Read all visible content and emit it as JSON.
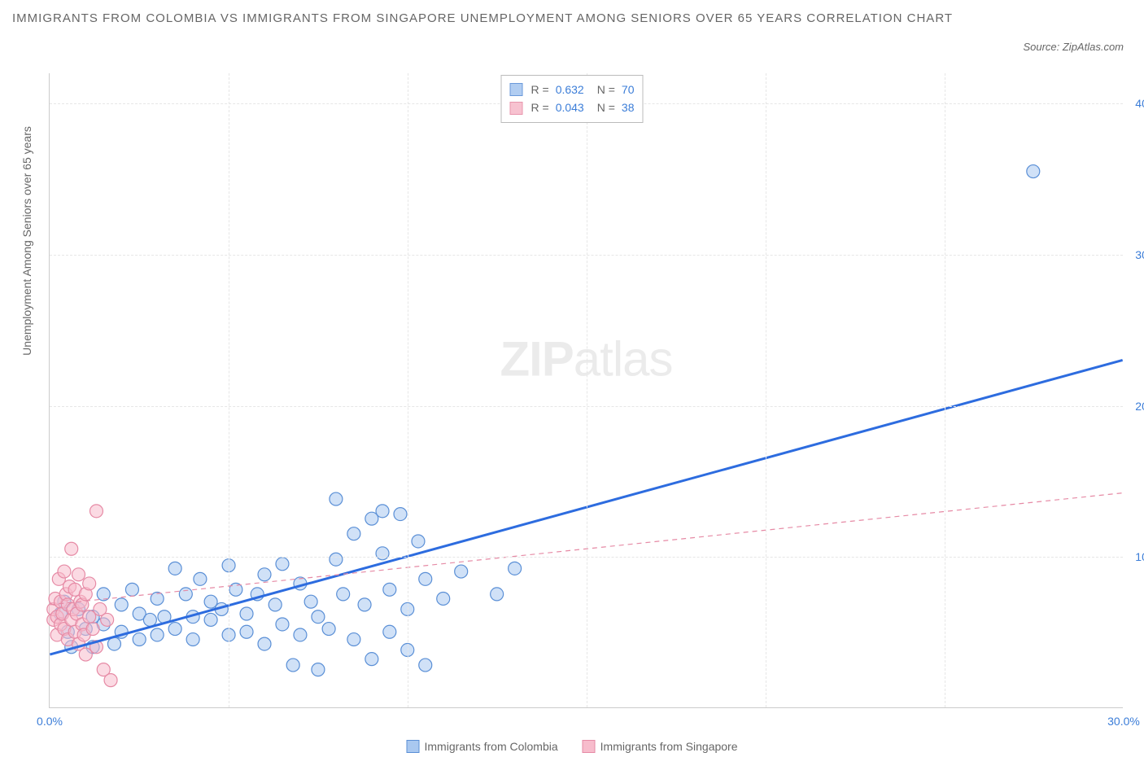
{
  "title": "IMMIGRANTS FROM COLOMBIA VS IMMIGRANTS FROM SINGAPORE UNEMPLOYMENT AMONG SENIORS OVER 65 YEARS CORRELATION CHART",
  "source": "Source: ZipAtlas.com",
  "yaxis_label": "Unemployment Among Seniors over 65 years",
  "watermark_bold": "ZIP",
  "watermark_light": "atlas",
  "chart": {
    "type": "scatter",
    "xlim": [
      0,
      30
    ],
    "ylim": [
      0,
      42
    ],
    "xticks": [
      {
        "v": 0,
        "l": "0.0%"
      },
      {
        "v": 30,
        "l": "30.0%"
      }
    ],
    "yticks": [
      {
        "v": 10,
        "l": "10.0%"
      },
      {
        "v": 20,
        "l": "20.0%"
      },
      {
        "v": 30,
        "l": "30.0%"
      },
      {
        "v": 40,
        "l": "40.0%"
      }
    ],
    "grid_color": "#e6e6e6",
    "background_color": "#ffffff",
    "marker_radius": 8,
    "marker_stroke_width": 1.2,
    "series": [
      {
        "name": "Immigrants from Colombia",
        "fill": "#a9c8f0",
        "stroke": "#5a8fd6",
        "fill_opacity": 0.55,
        "R": "0.632",
        "N": "70",
        "regression": {
          "x1": 0,
          "y1": 3.5,
          "x2": 30,
          "y2": 23,
          "color": "#2d6cdf",
          "width": 3,
          "dash": ""
        },
        "points": [
          [
            0.3,
            6.2
          ],
          [
            0.4,
            7.0
          ],
          [
            0.5,
            5.0
          ],
          [
            0.6,
            4.0
          ],
          [
            0.8,
            6.5
          ],
          [
            1.0,
            5.2
          ],
          [
            1.2,
            4.0
          ],
          [
            1.2,
            6.0
          ],
          [
            1.5,
            7.5
          ],
          [
            1.5,
            5.5
          ],
          [
            1.8,
            4.2
          ],
          [
            2.0,
            6.8
          ],
          [
            2.0,
            5.0
          ],
          [
            2.3,
            7.8
          ],
          [
            2.5,
            4.5
          ],
          [
            2.5,
            6.2
          ],
          [
            2.8,
            5.8
          ],
          [
            3.0,
            7.2
          ],
          [
            3.0,
            4.8
          ],
          [
            3.2,
            6.0
          ],
          [
            3.5,
            9.2
          ],
          [
            3.5,
            5.2
          ],
          [
            3.8,
            7.5
          ],
          [
            4.0,
            6.0
          ],
          [
            4.0,
            4.5
          ],
          [
            4.2,
            8.5
          ],
          [
            4.5,
            5.8
          ],
          [
            4.5,
            7.0
          ],
          [
            4.8,
            6.5
          ],
          [
            5.0,
            9.4
          ],
          [
            5.0,
            4.8
          ],
          [
            5.2,
            7.8
          ],
          [
            5.5,
            6.2
          ],
          [
            5.5,
            5.0
          ],
          [
            5.8,
            7.5
          ],
          [
            6.0,
            8.8
          ],
          [
            6.0,
            4.2
          ],
          [
            6.3,
            6.8
          ],
          [
            6.5,
            9.5
          ],
          [
            6.5,
            5.5
          ],
          [
            6.8,
            2.8
          ],
          [
            7.0,
            8.2
          ],
          [
            7.0,
            4.8
          ],
          [
            7.3,
            7.0
          ],
          [
            7.5,
            6.0
          ],
          [
            7.5,
            2.5
          ],
          [
            7.8,
            5.2
          ],
          [
            8.0,
            9.8
          ],
          [
            8.0,
            13.8
          ],
          [
            8.2,
            7.5
          ],
          [
            8.5,
            11.5
          ],
          [
            8.5,
            4.5
          ],
          [
            8.8,
            6.8
          ],
          [
            9.0,
            12.5
          ],
          [
            9.0,
            3.2
          ],
          [
            9.3,
            10.2
          ],
          [
            9.3,
            13
          ],
          [
            9.5,
            7.8
          ],
          [
            9.5,
            5.0
          ],
          [
            9.8,
            12.8
          ],
          [
            10.0,
            6.5
          ],
          [
            10.0,
            3.8
          ],
          [
            10.3,
            11.0
          ],
          [
            10.5,
            8.5
          ],
          [
            10.5,
            2.8
          ],
          [
            11.0,
            7.2
          ],
          [
            11.5,
            9.0
          ],
          [
            12.5,
            7.5
          ],
          [
            13.0,
            9.2
          ],
          [
            27.5,
            35.5
          ]
        ]
      },
      {
        "name": "Immigrants from Singapore",
        "fill": "#f7bccc",
        "stroke": "#e68aa5",
        "fill_opacity": 0.55,
        "R": "0.043",
        "N": "38",
        "regression": {
          "x1": 0,
          "y1": 6.8,
          "x2": 30,
          "y2": 14.2,
          "color": "#e68aa5",
          "width": 1.2,
          "dash": "6,5"
        },
        "points": [
          [
            0.1,
            5.8
          ],
          [
            0.1,
            6.5
          ],
          [
            0.15,
            7.2
          ],
          [
            0.2,
            4.8
          ],
          [
            0.2,
            6.0
          ],
          [
            0.25,
            8.5
          ],
          [
            0.3,
            5.5
          ],
          [
            0.3,
            7.0
          ],
          [
            0.35,
            6.2
          ],
          [
            0.4,
            9.0
          ],
          [
            0.4,
            5.2
          ],
          [
            0.45,
            7.5
          ],
          [
            0.5,
            6.8
          ],
          [
            0.5,
            4.5
          ],
          [
            0.55,
            8.0
          ],
          [
            0.6,
            5.8
          ],
          [
            0.6,
            10.5
          ],
          [
            0.65,
            6.5
          ],
          [
            0.7,
            7.8
          ],
          [
            0.7,
            5.0
          ],
          [
            0.75,
            6.2
          ],
          [
            0.8,
            8.8
          ],
          [
            0.8,
            4.2
          ],
          [
            0.85,
            7.0
          ],
          [
            0.9,
            5.5
          ],
          [
            0.9,
            6.8
          ],
          [
            0.95,
            4.8
          ],
          [
            1.0,
            7.5
          ],
          [
            1.0,
            3.5
          ],
          [
            1.1,
            6.0
          ],
          [
            1.1,
            8.2
          ],
          [
            1.2,
            5.2
          ],
          [
            1.3,
            13.0
          ],
          [
            1.3,
            4.0
          ],
          [
            1.4,
            6.5
          ],
          [
            1.5,
            2.5
          ],
          [
            1.6,
            5.8
          ],
          [
            1.7,
            1.8
          ]
        ]
      }
    ]
  },
  "legend_bottom": [
    {
      "swatch_fill": "#a9c8f0",
      "swatch_stroke": "#5a8fd6",
      "label": "Immigrants from Colombia"
    },
    {
      "swatch_fill": "#f7bccc",
      "swatch_stroke": "#e68aa5",
      "label": "Immigrants from Singapore"
    }
  ]
}
